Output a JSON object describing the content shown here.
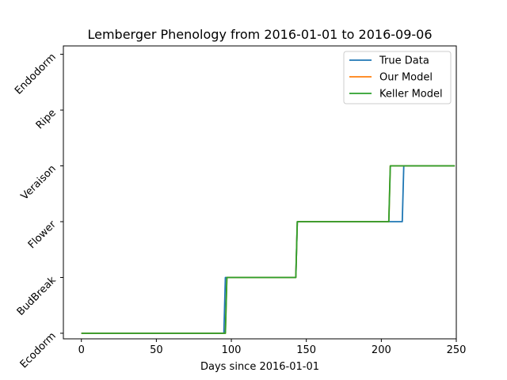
{
  "chart_data": {
    "type": "line",
    "title": "Lemberger Phenology from 2016-01-01 to 2016-09-06",
    "xlabel": "Days since 2016-01-01",
    "ylabel": "",
    "xlim": [
      -12,
      250
    ],
    "ylim": [
      -0.1,
      5.15
    ],
    "xticks": [
      0,
      50,
      100,
      150,
      200,
      250
    ],
    "yticks": [
      {
        "value": 0,
        "label": "Ecodorm"
      },
      {
        "value": 1,
        "label": "BudBreak"
      },
      {
        "value": 2,
        "label": "Flower"
      },
      {
        "value": 3,
        "label": "Veraison"
      },
      {
        "value": 4,
        "label": "Ripe"
      },
      {
        "value": 5,
        "label": "Endodorm"
      }
    ],
    "legend_position": "top-right",
    "grid": false,
    "series": [
      {
        "name": "True Data",
        "color": "#1f77b4",
        "x": [
          0,
          95,
          96,
          143,
          144,
          214,
          215,
          249
        ],
        "y": [
          0,
          0,
          1,
          1,
          2,
          2,
          3,
          3
        ]
      },
      {
        "name": "Our Model",
        "color": "#ff7f0e",
        "x": [
          0,
          96,
          97,
          143,
          144,
          205,
          206,
          249
        ],
        "y": [
          0,
          0,
          1,
          1,
          2,
          2,
          3,
          3
        ]
      },
      {
        "name": "Keller Model",
        "color": "#2ca02c",
        "x": [
          0,
          96,
          97,
          143,
          144,
          205,
          206,
          249
        ],
        "y": [
          0,
          0,
          1,
          1,
          2,
          2,
          3,
          3
        ]
      }
    ]
  }
}
